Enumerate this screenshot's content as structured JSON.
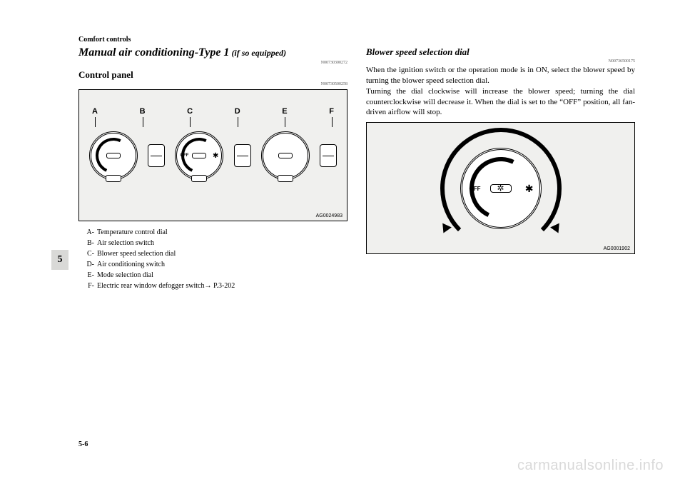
{
  "header": {
    "section": "Comfort controls"
  },
  "left": {
    "title_main": "Manual air conditioning-Type 1",
    "title_sub": " (if so equipped)",
    "docnum1": "N00730300272",
    "subhead": "Control panel",
    "docnum2": "N00730500258",
    "figure_id": "AG0024983",
    "labels": {
      "a": "A",
      "b": "B",
      "c": "C",
      "d": "D",
      "e": "E",
      "f": "F"
    },
    "dial_off": "OFF",
    "dial_fan": "✱",
    "legend": [
      {
        "key": "A-",
        "text": "Temperature control dial"
      },
      {
        "key": "B-",
        "text": "Air selection switch"
      },
      {
        "key": "C-",
        "text": "Blower speed selection dial"
      },
      {
        "key": "D-",
        "text": "Air conditioning switch"
      },
      {
        "key": "E-",
        "text": "Mode selection dial"
      },
      {
        "key": "F-",
        "text": "Electric rear window defogger switch→ P.3-202"
      }
    ]
  },
  "right": {
    "subhead": "Blower speed selection dial",
    "docnum": "N00736500175",
    "p1": "When the ignition switch or the operation mode is in ON, select the blower speed by turning the blower speed selection dial.",
    "p2": "Turning the dial clockwise will increase the blower speed; turning the dial counterclockwise will decrease it. When the dial is set to the “OFF” position, all fan-driven airflow will stop.",
    "figure_id": "AG0001902",
    "off": "OFF",
    "fan": "✱",
    "star": "✲"
  },
  "sidebar": {
    "chapter": "5"
  },
  "footer": {
    "pagenum": "5-6",
    "watermark": "carmanualsonline.info"
  }
}
